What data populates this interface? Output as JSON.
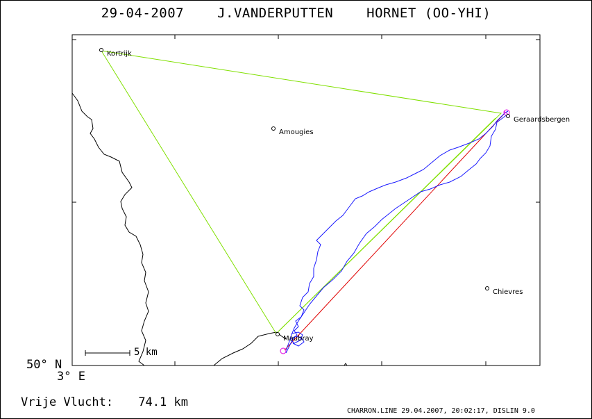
{
  "header": {
    "date": "29-04-2007",
    "pilot": "J.VANDERPUTTEN",
    "aircraft": "HORNET (OO-YHI)"
  },
  "map": {
    "lat_label": "50° N",
    "lon_label": "3° E",
    "scale_label": "5 km",
    "cities": [
      {
        "name": "Kortrijk"
      },
      {
        "name": "Amougies"
      },
      {
        "name": "Geraardsbergen"
      },
      {
        "name": "Maubray"
      },
      {
        "name": "Chievres"
      }
    ],
    "colors": {
      "track": "#1a1aff",
      "triangle": "#80e000",
      "red_line": "#e00000",
      "magenta": "#e000e0",
      "coast": "#000000"
    }
  },
  "score": {
    "label": "Vrije Vlucht:",
    "value": "74.1 km"
  },
  "footer": {
    "text": "CHARRON.LINE 29.04.2007, 20:02:17, DISLIN 9.0"
  }
}
